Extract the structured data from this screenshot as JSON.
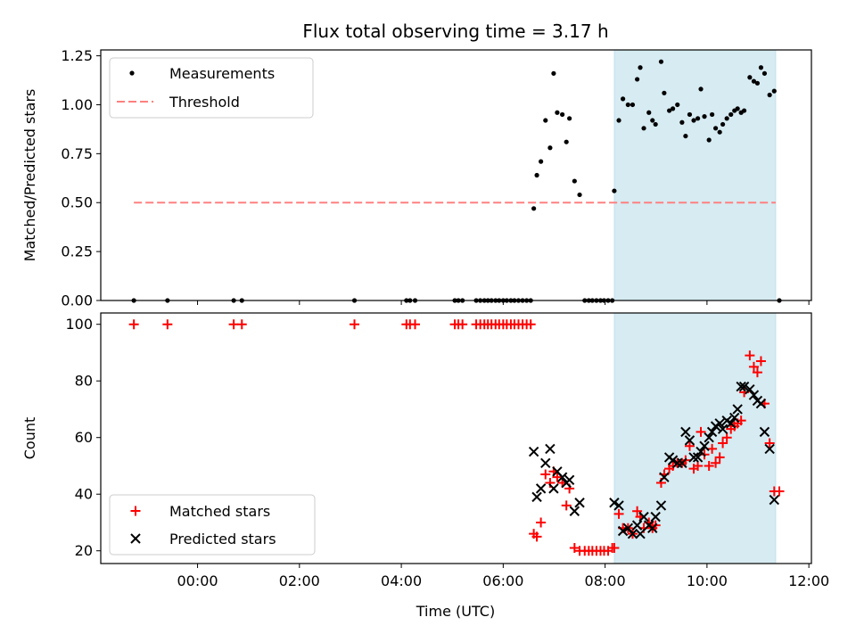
{
  "chart_data": {
    "type": "scatter",
    "title": "Flux total observing time = 3.17 h",
    "xlabel": "Time (UTC)",
    "x_unit": "hours (UTC, relative to 00:00)",
    "xlim": [
      -1.9,
      12.05
    ],
    "x_ticks": [
      {
        "value": 0,
        "label": "00:00"
      },
      {
        "value": 2,
        "label": "02:00"
      },
      {
        "value": 4,
        "label": "04:00"
      },
      {
        "value": 6,
        "label": "06:00"
      },
      {
        "value": 8,
        "label": "08:00"
      },
      {
        "value": 10,
        "label": "10:00"
      },
      {
        "value": 12,
        "label": "12:00"
      }
    ],
    "shaded_interval": {
      "start": 8.18,
      "end": 11.35,
      "color": "#add8e6"
    },
    "top": {
      "ylabel": "Matched/Predicted stars",
      "ylim": [
        0,
        1.28
      ],
      "y_ticks": [
        {
          "value": 0.0,
          "label": "0.00"
        },
        {
          "value": 0.25,
          "label": "0.25"
        },
        {
          "value": 0.5,
          "label": "0.50"
        },
        {
          "value": 0.75,
          "label": "0.75"
        },
        {
          "value": 1.0,
          "label": "1.00"
        },
        {
          "value": 1.25,
          "label": "1.25"
        }
      ],
      "threshold": {
        "value": 0.5,
        "x_range": [
          -1.25,
          11.35
        ],
        "color": "#ff8080"
      },
      "legend": [
        "Measurements",
        "Threshold"
      ],
      "measurements": [
        [
          -1.25,
          0
        ],
        [
          -0.59,
          0
        ],
        [
          0.71,
          0
        ],
        [
          0.87,
          0
        ],
        [
          3.08,
          0
        ],
        [
          4.1,
          0
        ],
        [
          4.17,
          0
        ],
        [
          4.27,
          0
        ],
        [
          5.05,
          0
        ],
        [
          5.12,
          0
        ],
        [
          5.2,
          0
        ],
        [
          5.47,
          0
        ],
        [
          5.55,
          0
        ],
        [
          5.63,
          0
        ],
        [
          5.7,
          0
        ],
        [
          5.77,
          0
        ],
        [
          5.85,
          0
        ],
        [
          5.92,
          0
        ],
        [
          6.0,
          0
        ],
        [
          6.07,
          0
        ],
        [
          6.15,
          0
        ],
        [
          6.22,
          0
        ],
        [
          6.3,
          0
        ],
        [
          6.38,
          0
        ],
        [
          6.46,
          0
        ],
        [
          6.54,
          0
        ],
        [
          6.6,
          0.47
        ],
        [
          6.66,
          0.64
        ],
        [
          6.74,
          0.71
        ],
        [
          6.83,
          0.92
        ],
        [
          6.92,
          0.78
        ],
        [
          6.99,
          1.16
        ],
        [
          7.06,
          0.96
        ],
        [
          7.16,
          0.95
        ],
        [
          7.24,
          0.81
        ],
        [
          7.3,
          0.93
        ],
        [
          7.4,
          0.61
        ],
        [
          7.5,
          0.54
        ],
        [
          7.6,
          0
        ],
        [
          7.68,
          0
        ],
        [
          7.75,
          0
        ],
        [
          7.83,
          0
        ],
        [
          7.91,
          0
        ],
        [
          7.98,
          0
        ],
        [
          8.06,
          0
        ],
        [
          8.14,
          0
        ],
        [
          8.18,
          0.56
        ],
        [
          8.27,
          0.92
        ],
        [
          8.35,
          1.03
        ],
        [
          8.45,
          1.0
        ],
        [
          8.54,
          1.0
        ],
        [
          8.63,
          1.13
        ],
        [
          8.69,
          1.19
        ],
        [
          8.76,
          0.88
        ],
        [
          8.86,
          0.96
        ],
        [
          8.93,
          0.92
        ],
        [
          8.99,
          0.9
        ],
        [
          9.1,
          1.22
        ],
        [
          9.16,
          1.06
        ],
        [
          9.26,
          0.97
        ],
        [
          9.33,
          0.98
        ],
        [
          9.42,
          1.0
        ],
        [
          9.51,
          0.91
        ],
        [
          9.58,
          0.84
        ],
        [
          9.66,
          0.95
        ],
        [
          9.74,
          0.92
        ],
        [
          9.82,
          0.93
        ],
        [
          9.88,
          1.08
        ],
        [
          9.95,
          0.94
        ],
        [
          10.04,
          0.82
        ],
        [
          10.1,
          0.95
        ],
        [
          10.17,
          0.88
        ],
        [
          10.25,
          0.86
        ],
        [
          10.31,
          0.9
        ],
        [
          10.39,
          0.93
        ],
        [
          10.47,
          0.95
        ],
        [
          10.54,
          0.97
        ],
        [
          10.6,
          0.98
        ],
        [
          10.67,
          0.96
        ],
        [
          10.73,
          0.97
        ],
        [
          10.84,
          1.14
        ],
        [
          10.92,
          1.12
        ],
        [
          10.99,
          1.11
        ],
        [
          11.06,
          1.19
        ],
        [
          11.13,
          1.16
        ],
        [
          11.23,
          1.05
        ],
        [
          11.32,
          1.07
        ],
        [
          11.42,
          0
        ]
      ]
    },
    "bottom": {
      "ylabel": "Count",
      "ylim": [
        15.5,
        104
      ],
      "y_ticks": [
        {
          "value": 20,
          "label": "20"
        },
        {
          "value": 40,
          "label": "40"
        },
        {
          "value": 60,
          "label": "60"
        },
        {
          "value": 80,
          "label": "80"
        },
        {
          "value": 100,
          "label": "100"
        }
      ],
      "legend": [
        "Matched stars",
        "Predicted stars"
      ],
      "series": [
        {
          "name": "Matched stars",
          "marker": "plus",
          "color": "#ff0000",
          "points": [
            [
              -1.25,
              100
            ],
            [
              -0.59,
              100
            ],
            [
              0.71,
              100
            ],
            [
              0.87,
              100
            ],
            [
              3.08,
              100
            ],
            [
              4.1,
              100
            ],
            [
              4.17,
              100
            ],
            [
              4.27,
              100
            ],
            [
              5.05,
              100
            ],
            [
              5.12,
              100
            ],
            [
              5.2,
              100
            ],
            [
              5.47,
              100
            ],
            [
              5.55,
              100
            ],
            [
              5.63,
              100
            ],
            [
              5.7,
              100
            ],
            [
              5.77,
              100
            ],
            [
              5.85,
              100
            ],
            [
              5.92,
              100
            ],
            [
              6.0,
              100
            ],
            [
              6.07,
              100
            ],
            [
              6.15,
              100
            ],
            [
              6.22,
              100
            ],
            [
              6.3,
              100
            ],
            [
              6.38,
              100
            ],
            [
              6.46,
              100
            ],
            [
              6.54,
              100
            ],
            [
              6.6,
              26
            ],
            [
              6.66,
              25
            ],
            [
              6.74,
              30
            ],
            [
              6.83,
              47
            ],
            [
              6.92,
              44
            ],
            [
              6.99,
              48
            ],
            [
              7.06,
              46
            ],
            [
              7.16,
              44
            ],
            [
              7.24,
              36
            ],
            [
              7.3,
              42
            ],
            [
              7.4,
              21
            ],
            [
              7.5,
              20
            ],
            [
              7.6,
              20
            ],
            [
              7.68,
              20
            ],
            [
              7.75,
              20
            ],
            [
              7.83,
              20
            ],
            [
              7.91,
              20
            ],
            [
              7.98,
              20
            ],
            [
              8.06,
              20
            ],
            [
              8.14,
              21
            ],
            [
              8.18,
              21
            ],
            [
              8.27,
              33
            ],
            [
              8.35,
              28
            ],
            [
              8.45,
              28
            ],
            [
              8.54,
              26
            ],
            [
              8.63,
              34
            ],
            [
              8.69,
              32
            ],
            [
              8.76,
              28
            ],
            [
              8.86,
              30
            ],
            [
              8.93,
              28
            ],
            [
              8.99,
              29
            ],
            [
              9.1,
              44
            ],
            [
              9.16,
              47
            ],
            [
              9.26,
              49
            ],
            [
              9.33,
              50
            ],
            [
              9.42,
              51
            ],
            [
              9.51,
              51
            ],
            [
              9.58,
              52
            ],
            [
              9.66,
              57
            ],
            [
              9.74,
              49
            ],
            [
              9.82,
              50
            ],
            [
              9.88,
              62
            ],
            [
              9.95,
              54
            ],
            [
              10.04,
              50
            ],
            [
              10.1,
              56
            ],
            [
              10.17,
              51
            ],
            [
              10.25,
              53
            ],
            [
              10.31,
              58
            ],
            [
              10.39,
              60
            ],
            [
              10.47,
              63
            ],
            [
              10.54,
              64
            ],
            [
              10.6,
              65
            ],
            [
              10.67,
              66
            ],
            [
              10.73,
              76
            ],
            [
              10.84,
              89
            ],
            [
              10.92,
              85
            ],
            [
              10.99,
              83
            ],
            [
              11.06,
              87
            ],
            [
              11.13,
              72
            ],
            [
              11.23,
              58
            ],
            [
              11.32,
              41
            ],
            [
              11.42,
              41
            ]
          ]
        },
        {
          "name": "Predicted stars",
          "marker": "x",
          "color": "#000000",
          "points": [
            [
              6.6,
              55
            ],
            [
              6.66,
              39
            ],
            [
              6.74,
              42
            ],
            [
              6.83,
              51
            ],
            [
              6.92,
              56
            ],
            [
              6.99,
              42
            ],
            [
              7.06,
              48
            ],
            [
              7.16,
              46
            ],
            [
              7.24,
              44
            ],
            [
              7.3,
              45
            ],
            [
              7.4,
              34
            ],
            [
              7.5,
              37
            ],
            [
              8.18,
              37
            ],
            [
              8.27,
              36
            ],
            [
              8.35,
              27
            ],
            [
              8.45,
              28
            ],
            [
              8.54,
              26
            ],
            [
              8.63,
              29
            ],
            [
              8.69,
              26
            ],
            [
              8.76,
              32
            ],
            [
              8.86,
              29
            ],
            [
              8.93,
              28
            ],
            [
              8.99,
              32
            ],
            [
              9.1,
              36
            ],
            [
              9.16,
              46
            ],
            [
              9.26,
              53
            ],
            [
              9.33,
              52
            ],
            [
              9.42,
              51
            ],
            [
              9.51,
              51
            ],
            [
              9.58,
              62
            ],
            [
              9.66,
              59
            ],
            [
              9.74,
              53
            ],
            [
              9.82,
              53
            ],
            [
              9.88,
              55
            ],
            [
              9.95,
              57
            ],
            [
              10.04,
              60
            ],
            [
              10.1,
              62
            ],
            [
              10.17,
              64
            ],
            [
              10.25,
              65
            ],
            [
              10.31,
              63
            ],
            [
              10.39,
              66
            ],
            [
              10.47,
              65
            ],
            [
              10.54,
              67
            ],
            [
              10.6,
              70
            ],
            [
              10.67,
              78
            ],
            [
              10.73,
              78
            ],
            [
              10.84,
              77
            ],
            [
              10.92,
              75
            ],
            [
              10.99,
              73
            ],
            [
              11.06,
              72
            ],
            [
              11.13,
              62
            ],
            [
              11.23,
              56
            ],
            [
              11.32,
              38
            ]
          ]
        }
      ]
    }
  }
}
